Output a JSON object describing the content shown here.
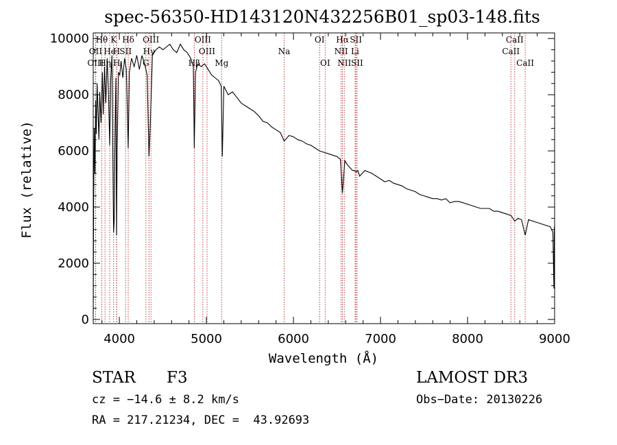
{
  "chart_data": {
    "type": "line",
    "title": "spec-56350-HD143120N432256B01_sp03-148.fits",
    "xlabel": "Wavelength (Å)",
    "ylabel": "Flux (relative)",
    "xlim": [
      3700,
      9000
    ],
    "ylim": [
      -150,
      10200
    ],
    "x_ticks": [
      4000,
      5000,
      6000,
      7000,
      8000,
      9000
    ],
    "y_ticks": [
      0,
      2000,
      4000,
      6000,
      8000,
      10000
    ],
    "grid": false,
    "line_color": "#000000",
    "marker_color": "#b22222",
    "series": [
      {
        "name": "flux",
        "x": [
          3700,
          3705,
          3712,
          3720,
          3728,
          3735,
          3745,
          3755,
          3765,
          3775,
          3790,
          3805,
          3815,
          3830,
          3845,
          3860,
          3875,
          3889,
          3900,
          3915,
          3930,
          3934,
          3940,
          3950,
          3960,
          3968,
          3975,
          3990,
          4005,
          4020,
          4040,
          4060,
          4080,
          4102,
          4115,
          4140,
          4170,
          4200,
          4230,
          4260,
          4290,
          4320,
          4340,
          4355,
          4380,
          4420,
          4460,
          4500,
          4540,
          4580,
          4620,
          4660,
          4700,
          4740,
          4780,
          4820,
          4850,
          4861,
          4875,
          4900,
          4940,
          4980,
          5020,
          5060,
          5100,
          5140,
          5170,
          5183,
          5200,
          5250,
          5300,
          5350,
          5400,
          5450,
          5500,
          5550,
          5600,
          5650,
          5700,
          5750,
          5800,
          5850,
          5893,
          5950,
          6000,
          6050,
          6100,
          6150,
          6200,
          6250,
          6300,
          6350,
          6400,
          6450,
          6500,
          6540,
          6563,
          6590,
          6620,
          6650,
          6680,
          6700,
          6720,
          6740,
          6760,
          6790,
          6820,
          6860,
          6900,
          6950,
          7000,
          7050,
          7100,
          7150,
          7200,
          7250,
          7300,
          7350,
          7400,
          7450,
          7500,
          7550,
          7600,
          7650,
          7700,
          7750,
          7800,
          7850,
          7900,
          7950,
          8000,
          8050,
          8100,
          8150,
          8200,
          8250,
          8300,
          8350,
          8400,
          8450,
          8500,
          8542,
          8580,
          8620,
          8662,
          8700,
          8750,
          8800,
          8850,
          8900,
          8950,
          8980,
          8992,
          8996,
          9000
        ],
        "values": [
          200,
          4200,
          6800,
          5200,
          7800,
          6600,
          8400,
          7400,
          6400,
          8100,
          7000,
          8800,
          7300,
          9000,
          7700,
          9300,
          8100,
          6200,
          8500,
          9400,
          4200,
          3100,
          3500,
          6500,
          8600,
          3000,
          6100,
          8800,
          8700,
          9200,
          8600,
          9300,
          8900,
          6100,
          8800,
          9300,
          9000,
          9400,
          8900,
          9400,
          9100,
          8700,
          5800,
          6900,
          9400,
          9600,
          9700,
          9600,
          9700,
          9800,
          9600,
          9500,
          9800,
          9600,
          9500,
          9300,
          9000,
          6100,
          8800,
          9100,
          9000,
          9100,
          8900,
          8700,
          8600,
          8500,
          8300,
          5800,
          8300,
          8000,
          8100,
          7900,
          7700,
          7600,
          7500,
          7400,
          7250,
          7050,
          7000,
          6850,
          6750,
          6650,
          6350,
          6550,
          6500,
          6400,
          6350,
          6250,
          6200,
          6100,
          6000,
          5950,
          5900,
          5850,
          5800,
          5700,
          4500,
          5650,
          5500,
          5400,
          5300,
          5300,
          5250,
          5300,
          5100,
          5200,
          5300,
          5250,
          5200,
          5100,
          5000,
          4900,
          4950,
          4850,
          4800,
          4750,
          4650,
          4600,
          4550,
          4450,
          4400,
          4350,
          4300,
          4300,
          4250,
          4300,
          4150,
          4200,
          4200,
          4150,
          4100,
          4050,
          4000,
          3950,
          3950,
          3950,
          3850,
          3850,
          3800,
          3750,
          3700,
          3500,
          3600,
          3550,
          3000,
          3550,
          3500,
          3450,
          3400,
          3350,
          3300,
          3100,
          1100,
          3200,
          3350
        ]
      }
    ],
    "spectral_lines": [
      {
        "name": "Hθ",
        "wavelength": 3798,
        "row": 0
      },
      {
        "name": "OII",
        "wavelength": 3727,
        "row": 1
      },
      {
        "name": "OIII",
        "wavelength": 3727,
        "row": 2
      },
      {
        "name": "He",
        "wavelength": 3889,
        "row": 1
      },
      {
        "name": "Hη",
        "wavelength": 3835,
        "row": 2
      },
      {
        "name": "K",
        "wavelength": 3934,
        "row": 0
      },
      {
        "name": "H",
        "wavelength": 3968,
        "row": 1
      },
      {
        "name": "Hδ",
        "wavelength": 4102,
        "row": 0
      },
      {
        "name": "SII",
        "wavelength": 4072,
        "row": 1
      },
      {
        "name": "H",
        "wavelength": 3970,
        "row": 2
      },
      {
        "name": "OIII",
        "wavelength": 4363,
        "row": 0
      },
      {
        "name": "Hγ",
        "wavelength": 4340,
        "row": 1
      },
      {
        "name": "G",
        "wavelength": 4305,
        "row": 2
      },
      {
        "name": "OIII",
        "wavelength": 4959,
        "row": 0
      },
      {
        "name": "OIII",
        "wavelength": 5007,
        "row": 1
      },
      {
        "name": "Hβ",
        "wavelength": 4861,
        "row": 2
      },
      {
        "name": "Mg",
        "wavelength": 5175,
        "row": 2
      },
      {
        "name": "Na",
        "wavelength": 5893,
        "row": 1
      },
      {
        "name": "OI",
        "wavelength": 6300,
        "row": 0
      },
      {
        "name": "OI",
        "wavelength": 6364,
        "row": 2
      },
      {
        "name": "Hα",
        "wavelength": 6563,
        "row": 0
      },
      {
        "name": "NII",
        "wavelength": 6548,
        "row": 1
      },
      {
        "name": "NII",
        "wavelength": 6584,
        "row": 2
      },
      {
        "name": "SII",
        "wavelength": 6717,
        "row": 0
      },
      {
        "name": "Li",
        "wavelength": 6708,
        "row": 1
      },
      {
        "name": "SII",
        "wavelength": 6731,
        "row": 2
      },
      {
        "name": "CaII",
        "wavelength": 8542,
        "row": 0
      },
      {
        "name": "CaII",
        "wavelength": 8498,
        "row": 1
      },
      {
        "name": "CaII",
        "wavelength": 8662,
        "row": 2
      }
    ]
  },
  "info": {
    "object_class": "STAR",
    "subclass": "F3",
    "survey": "LAMOST DR3",
    "cz": "cz = −14.6 ± 8.2 km/s",
    "obs_date": "Obs−Date: 20130226",
    "coords": "RA = 217.21234, DEC =  43.92693"
  }
}
